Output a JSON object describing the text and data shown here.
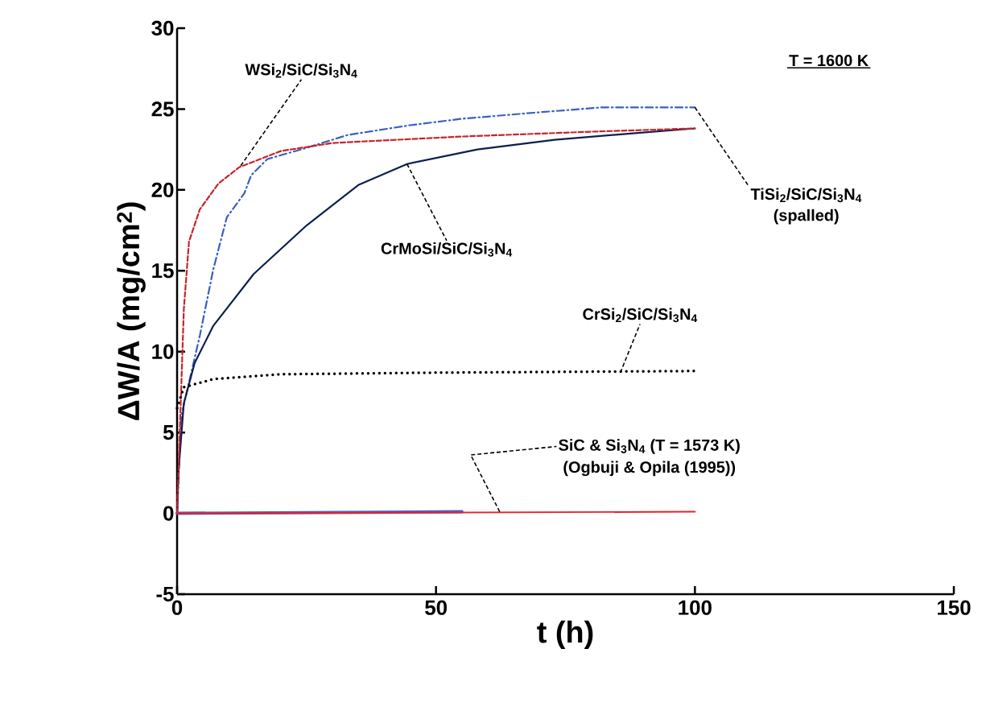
{
  "chart_data": {
    "type": "line",
    "xlabel": "t (h)",
    "ylabel": "ΔW/A (mg/cm$^{2}$)",
    "xlim": [
      0,
      150
    ],
    "xticks": [
      0,
      50,
      100,
      150
    ],
    "ylim": [
      -5,
      30
    ],
    "yticks": [
      -5,
      0,
      5,
      10,
      15,
      20,
      25,
      30
    ],
    "marker": "none",
    "series": [
      {
        "color": "#3a5fbf",
        "line_style": "dashdot",
        "x": [
          0,
          0.8,
          4.4,
          7,
          9.6,
          13,
          14.3,
          17.4,
          25,
          33,
          45,
          55,
          70,
          82,
          100
        ],
        "values": [
          0,
          6,
          11,
          15.1,
          18.3,
          19.8,
          20.9,
          21.9,
          22.6,
          23.4,
          24,
          24.4,
          24.8,
          25.1,
          25.1
        ]
      },
      {
        "color": "#0d1f4f",
        "line_style": "solid",
        "x": [
          0,
          0.3,
          1.3,
          3.4,
          7,
          14.8,
          25,
          35,
          44.4,
          58,
          72.9,
          88,
          100
        ],
        "values": [
          0,
          2.7,
          6.8,
          9.3,
          11.6,
          14.8,
          17.8,
          20.3,
          21.6,
          22.5,
          23.1,
          23.5,
          23.8
        ]
      },
      {
        "color": "#c8232c",
        "line_style": "dashed",
        "x": [
          0,
          0.3,
          0.8,
          1.3,
          2.3,
          4.4,
          8,
          12,
          20,
          30,
          55,
          80,
          100
        ],
        "values": [
          0,
          3,
          7.7,
          12.6,
          16.8,
          18.8,
          20.4,
          21.4,
          22.4,
          22.9,
          23.3,
          23.6,
          23.8
        ]
      },
      {
        "color": "#000000",
        "line_style": "dotted",
        "x": [
          0,
          1.3,
          7,
          20,
          50,
          100
        ],
        "values": [
          6.5,
          7.8,
          8.3,
          8.6,
          8.7,
          8.8
        ]
      },
      {
        "color": "#5060c0",
        "line_style": "solid",
        "x": [
          0,
          55
        ],
        "values": [
          0,
          0.1
        ]
      },
      {
        "color": "#e8202a",
        "line_style": "solid",
        "x": [
          0,
          100
        ],
        "values": [
          0,
          0.1
        ]
      }
    ],
    "annotations": [
      "T = 1600 K",
      {
        "text": "WSi$_{2}$/SiC/Si$_{3}$N$_{4}$",
        "x": 12.3,
        "y": 21.5
      },
      {
        "text": "TiSi$_{2}$/SiC/Si$_{3}$N$_{4}$",
        "x": 100,
        "y": 25.1
      },
      "(spalled)",
      {
        "text": "CrMoSi/SiC/Si$_{3}$N$_{4}$",
        "x": 44.4,
        "y": 21.6
      },
      {
        "text": "CrSi$_{2}$/SiC/Si$_{3}$N$_{4}$",
        "x": 85.6,
        "y": 8.7
      },
      {
        "text": "SiC & Si$_{3}$N$_{4}$ (T = 1573 K)",
        "x": 62.3,
        "y": 0.1
      },
      "(Ogbuji & Opila (1995))"
    ]
  }
}
